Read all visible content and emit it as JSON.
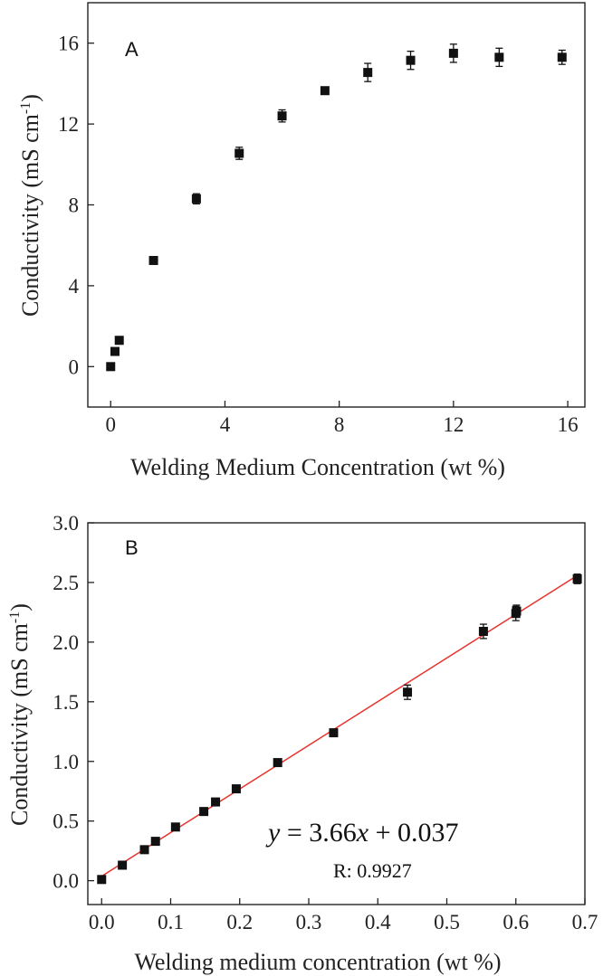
{
  "chart_data": [
    {
      "type": "scatter",
      "panel_label": "A",
      "xlabel": "Welding Medium Concentration (wt %)",
      "ylabel": "Conductivity (mS cm",
      "ylabel_sup": "-1",
      "ylabel_end": ")",
      "xlim": [
        -0.8,
        16.6
      ],
      "ylim": [
        -2.0,
        18.0
      ],
      "x_ticks": [
        0,
        4,
        8,
        12,
        16
      ],
      "y_ticks": [
        0,
        4,
        8,
        12,
        16
      ],
      "x_tick_labels": [
        "0",
        "4",
        "8",
        "12",
        "16"
      ],
      "y_tick_labels": [
        "0",
        "4",
        "8",
        "12",
        "16"
      ],
      "marker_color": "#111111",
      "points": [
        {
          "x": 0.0,
          "y": 0.0,
          "err": 0
        },
        {
          "x": 0.15,
          "y": 0.75,
          "err": 0
        },
        {
          "x": 0.3,
          "y": 1.3,
          "err": 0
        },
        {
          "x": 1.5,
          "y": 5.25,
          "err": 0
        },
        {
          "x": 3.0,
          "y": 8.3,
          "err": 0.25
        },
        {
          "x": 4.5,
          "y": 10.55,
          "err": 0.3
        },
        {
          "x": 6.0,
          "y": 12.4,
          "err": 0.3
        },
        {
          "x": 7.5,
          "y": 13.65,
          "err": 0
        },
        {
          "x": 9.0,
          "y": 14.55,
          "err": 0.45
        },
        {
          "x": 10.5,
          "y": 15.15,
          "err": 0.45
        },
        {
          "x": 12.0,
          "y": 15.5,
          "err": 0.45
        },
        {
          "x": 13.6,
          "y": 15.3,
          "err": 0.45
        },
        {
          "x": 15.8,
          "y": 15.3,
          "err": 0.35
        }
      ]
    },
    {
      "type": "scatter",
      "panel_label": "B",
      "xlabel": "Welding medium concentration (wt %)",
      "ylabel": "Conductivity (mS cm",
      "ylabel_sup": "-1",
      "ylabel_end": ")",
      "xlim": [
        -0.02,
        0.7
      ],
      "ylim": [
        -0.2,
        3.0
      ],
      "x_ticks": [
        0.0,
        0.1,
        0.2,
        0.3,
        0.4,
        0.5,
        0.6,
        0.7
      ],
      "y_ticks": [
        0.0,
        0.5,
        1.0,
        1.5,
        2.0,
        2.5,
        3.0
      ],
      "x_tick_labels": [
        "0.0",
        "0.1",
        "0.2",
        "0.3",
        "0.4",
        "0.5",
        "0.6",
        "0.7"
      ],
      "y_tick_labels": [
        "0.0",
        "0.5",
        "1.0",
        "1.5",
        "2.0",
        "2.5",
        "3.0"
      ],
      "marker_color": "#111111",
      "fit_line": {
        "slope": 3.66,
        "intercept": 0.037,
        "x_range": [
          0.0,
          0.69
        ],
        "color": "#e8322c"
      },
      "equation": {
        "y": "y",
        "eq": " = 3.66",
        "x": "x",
        "rest": " + 0.037"
      },
      "r_label": "R: 0.9927",
      "points": [
        {
          "x": 0.0,
          "y": 0.01,
          "err": 0
        },
        {
          "x": 0.03,
          "y": 0.13,
          "err": 0
        },
        {
          "x": 0.062,
          "y": 0.26,
          "err": 0
        },
        {
          "x": 0.078,
          "y": 0.33,
          "err": 0.03
        },
        {
          "x": 0.107,
          "y": 0.45,
          "err": 0
        },
        {
          "x": 0.148,
          "y": 0.58,
          "err": 0
        },
        {
          "x": 0.165,
          "y": 0.66,
          "err": 0
        },
        {
          "x": 0.195,
          "y": 0.77,
          "err": 0
        },
        {
          "x": 0.255,
          "y": 0.99,
          "err": 0.03
        },
        {
          "x": 0.336,
          "y": 1.24,
          "err": 0
        },
        {
          "x": 0.443,
          "y": 1.58,
          "err": 0.06
        },
        {
          "x": 0.553,
          "y": 2.09,
          "err": 0.06
        },
        {
          "x": 0.6,
          "y": 2.24,
          "err": 0.06
        },
        {
          "x": 0.601,
          "y": 2.26,
          "err": 0.05
        },
        {
          "x": 0.689,
          "y": 2.53,
          "err": 0.04
        }
      ]
    }
  ]
}
